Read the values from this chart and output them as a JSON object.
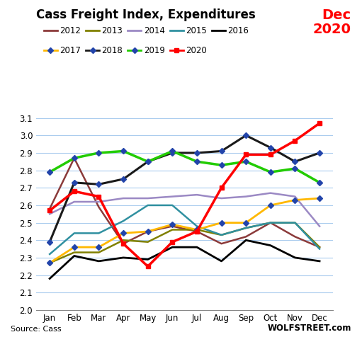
{
  "title": "Cass Freight Index, Expenditures",
  "months": [
    "Jan",
    "Feb",
    "Mar",
    "Apr",
    "May",
    "Jun",
    "Jul",
    "Aug",
    "Sep",
    "Oct",
    "Nov",
    "Dec"
  ],
  "series": {
    "2012": [
      2.58,
      2.87,
      2.59,
      2.38,
      2.45,
      2.48,
      2.45,
      2.38,
      2.42,
      2.5,
      2.42,
      2.36
    ],
    "2013": [
      2.27,
      2.33,
      2.33,
      2.4,
      2.39,
      2.46,
      2.46,
      2.43,
      2.47,
      2.5,
      2.5,
      2.36
    ],
    "2014": [
      2.55,
      2.62,
      2.62,
      2.64,
      2.64,
      2.65,
      2.66,
      2.64,
      2.65,
      2.67,
      2.65,
      2.48
    ],
    "2015": [
      2.32,
      2.44,
      2.44,
      2.51,
      2.6,
      2.6,
      2.48,
      2.43,
      2.47,
      2.5,
      2.5,
      2.35
    ],
    "2016": [
      2.18,
      2.31,
      2.28,
      2.3,
      2.29,
      2.36,
      2.36,
      2.28,
      2.4,
      2.37,
      2.3,
      2.28
    ],
    "2017": [
      2.27,
      2.36,
      2.36,
      2.44,
      2.45,
      2.49,
      2.46,
      2.5,
      2.5,
      2.6,
      2.63,
      2.64
    ],
    "2018": [
      2.39,
      2.73,
      2.72,
      2.75,
      2.85,
      2.9,
      2.9,
      2.91,
      3.0,
      2.93,
      2.85,
      2.9
    ],
    "2019": [
      2.79,
      2.87,
      2.9,
      2.91,
      2.85,
      2.91,
      2.85,
      2.83,
      2.85,
      2.79,
      2.81,
      2.73
    ],
    "2020": [
      2.57,
      2.68,
      2.65,
      2.38,
      2.25,
      2.39,
      2.45,
      2.7,
      2.89,
      2.89,
      2.97,
      3.07
    ]
  },
  "colors": {
    "2012": "#8B3A3A",
    "2013": "#808000",
    "2014": "#9B89C4",
    "2015": "#3090A0",
    "2016": "#000000",
    "2017": "#FFB800",
    "2018": "#1A1A1A",
    "2019": "#22CC00",
    "2020": "#FF0000"
  },
  "markers": {
    "2012": "none",
    "2013": "none",
    "2014": "none",
    "2015": "none",
    "2016": "none",
    "2017": "D",
    "2018": "D",
    "2019": "D",
    "2020": "s"
  },
  "marker_colors": {
    "2017": "#2244AA",
    "2018": "#2244AA",
    "2019": "#2244AA",
    "2020": "#FF0000"
  },
  "linewidths": {
    "2012": 1.8,
    "2013": 1.8,
    "2014": 1.8,
    "2015": 1.8,
    "2016": 2.0,
    "2017": 2.0,
    "2018": 2.2,
    "2019": 2.5,
    "2020": 2.5
  },
  "ylim": [
    2.0,
    3.1
  ],
  "yticks": [
    2.0,
    2.1,
    2.2,
    2.3,
    2.4,
    2.5,
    2.6,
    2.7,
    2.8,
    2.9,
    3.0,
    3.1
  ],
  "source_text": "Source: Cass",
  "watermark": "WOLFSTREET.com",
  "annotation_text": "Dec\n2020",
  "annotation_color": "#FF0000",
  "background_color": "#FFFFFF",
  "grid_color": "#AACCEE",
  "legend_rows": [
    [
      "2012",
      "2013",
      "2014",
      "2015",
      "2016"
    ],
    [
      "2017",
      "2018",
      "2019",
      "2020"
    ]
  ]
}
